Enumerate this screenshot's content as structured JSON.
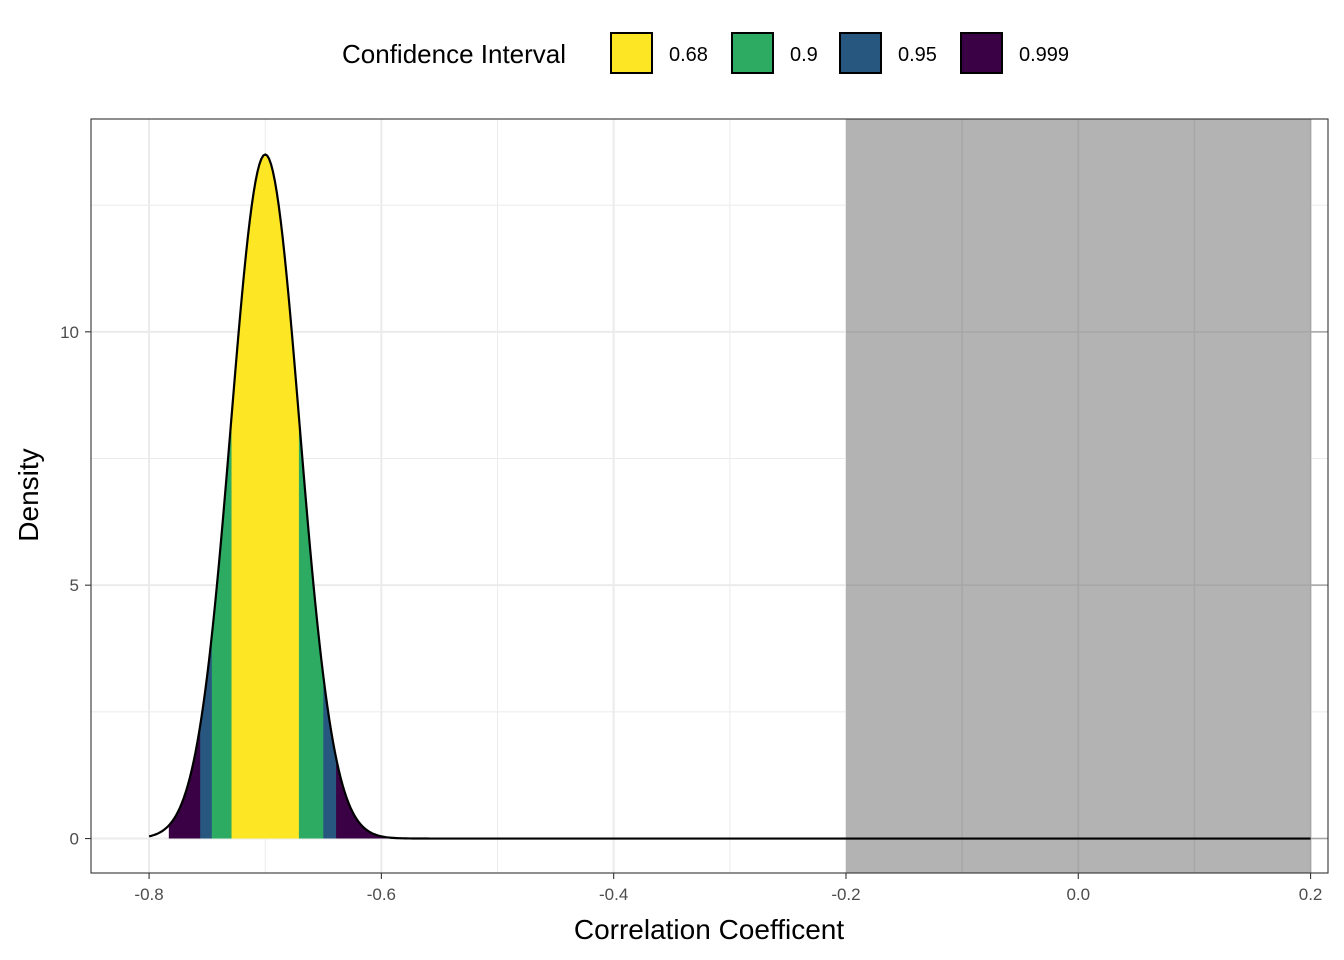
{
  "chart_data": {
    "type": "area",
    "title": "",
    "xlabel": "Correlation Coefficent",
    "ylabel": "Density",
    "xlim": [
      -0.85,
      0.215
    ],
    "ylim": [
      -0.68,
      14.2
    ],
    "x_ticks": [
      -0.8,
      -0.6,
      -0.4,
      -0.2,
      0.0,
      0.2
    ],
    "x_tick_labels": [
      "-0.8",
      "-0.6",
      "-0.4",
      "-0.2",
      "0.0",
      "0.2"
    ],
    "y_ticks": [
      0,
      5,
      10
    ],
    "y_tick_labels": [
      "0",
      "5",
      "10"
    ],
    "grid": true,
    "legend": {
      "title": "Confidence Interval",
      "position": "top",
      "entries": [
        {
          "label": "0.68",
          "color": "#FDE725"
        },
        {
          "label": "0.9",
          "color": "#2EAB63"
        },
        {
          "label": "0.95",
          "color": "#27577E"
        },
        {
          "label": "0.999",
          "color": "#3A0245"
        }
      ]
    },
    "density_curve": {
      "mean": -0.7,
      "sd": 0.0295,
      "peak": 13.5,
      "x_range": [
        -0.8,
        0.2
      ]
    },
    "intervals": [
      {
        "level": "0.999",
        "lower": -0.783,
        "upper": -0.59,
        "color": "#3A0245"
      },
      {
        "level": "0.95",
        "lower": -0.756,
        "upper": -0.639,
        "color": "#27577E"
      },
      {
        "level": "0.9",
        "lower": -0.746,
        "upper": -0.65,
        "color": "#2EAB63"
      },
      {
        "level": "0.68",
        "lower": -0.729,
        "upper": -0.671,
        "color": "#FDE725"
      }
    ],
    "shaded_region": {
      "x": [
        -0.2,
        0.2
      ],
      "color": "#B3B3B3"
    }
  }
}
